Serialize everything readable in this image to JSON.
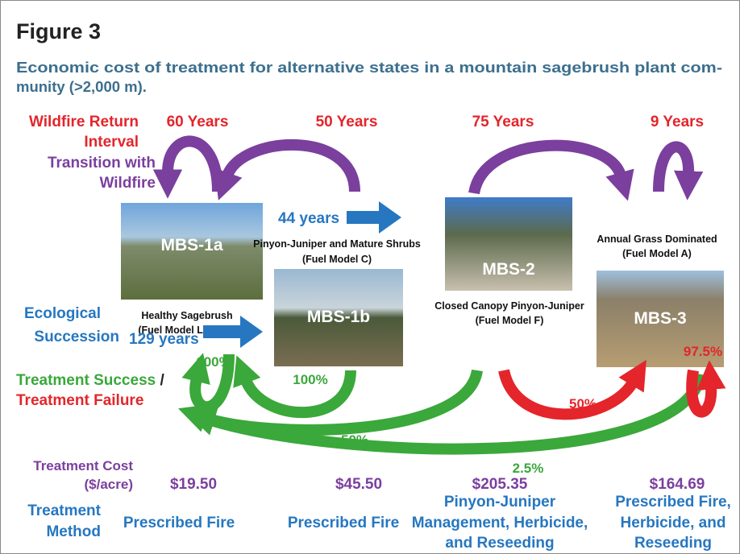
{
  "figure": {
    "label": "Figure 3",
    "caption": [
      "Economic cost of treatment for alternative states in a mountain sagebrush plant com-",
      "munity (>2,000 m)."
    ]
  },
  "row_labels": {
    "wildfire_return_interval": [
      "Wildfire Return",
      "Interval"
    ],
    "transition_with_wildfire": [
      "Transition with",
      "Wildfire"
    ],
    "ecological_succession": [
      "Ecological",
      "Succession"
    ],
    "treatment_success": "Treatment Success",
    "separator": "/",
    "treatment_failure": "Treatment Failure",
    "treatment_cost": [
      "Treatment Cost",
      "($/acre)"
    ],
    "treatment_method": [
      "Treatment",
      "Method"
    ]
  },
  "wildfire_intervals": [
    "60 Years",
    "50 Years",
    "75 Years",
    "9 Years"
  ],
  "succession": [
    "44 years",
    "129 years"
  ],
  "states": [
    {
      "id": "MBS-1a",
      "name": "Healthy Sagebrush",
      "fuel_model": "(Fuel Model L and T)"
    },
    {
      "id": "MBS-1b",
      "name": "Pinyon-Juniper and Mature Shrubs",
      "fuel_model": "(Fuel Model C)"
    },
    {
      "id": "MBS-2",
      "name": "Closed Canopy Pinyon-Juniper",
      "fuel_model": "(Fuel Model F)"
    },
    {
      "id": "MBS-3",
      "name": "Annual Grass Dominated",
      "fuel_model": "(Fuel Model A)"
    }
  ],
  "treatment_outcomes": [
    "100%",
    "100%",
    "50%",
    "50%",
    "2.5%",
    "97.5%"
  ],
  "costs": [
    "$19.50",
    "$45.50",
    "$205.35",
    "$164.69"
  ],
  "methods": [
    [
      "Prescribed Fire"
    ],
    [
      "Prescribed Fire"
    ],
    [
      "Pinyon-Juniper",
      "Management, Herbicide,",
      "and Reseeding"
    ],
    [
      "Prescribed Fire,",
      "Herbicide, and",
      "Reseeding"
    ]
  ]
}
